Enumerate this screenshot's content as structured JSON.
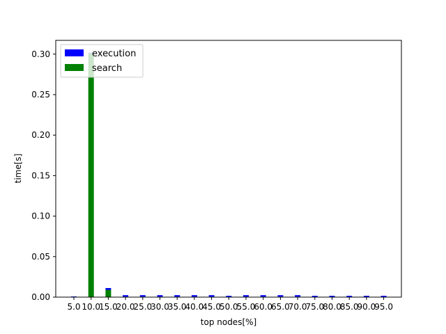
{
  "chart_data": {
    "type": "bar",
    "stacked": true,
    "xlabel": "top nodes[%]",
    "ylabel": "time[s]",
    "categories": [
      "5.0",
      "10.0",
      "15.0",
      "20.0",
      "25.0",
      "30.0",
      "35.0",
      "40.0",
      "45.0",
      "50.0",
      "55.0",
      "60.0",
      "65.0",
      "70.0",
      "75.0",
      "80.0",
      "85.0",
      "90.0",
      "95.0"
    ],
    "ylim": [
      0,
      0.317
    ],
    "yticks": [
      "0.00",
      "0.05",
      "0.10",
      "0.15",
      "0.20",
      "0.25",
      "0.30"
    ],
    "ytick_values": [
      0,
      0.05,
      0.1,
      0.15,
      0.2,
      0.25,
      0.3
    ],
    "series": [
      {
        "name": "search",
        "color": "#008000",
        "values": [
          0.0002,
          0.301,
          0.009,
          0.0006,
          0.0006,
          0.0006,
          0.0006,
          0.0006,
          0.0006,
          0.0004,
          0.0006,
          0.0006,
          0.0006,
          0.0006,
          0.0004,
          0.0004,
          0.0004,
          0.0004,
          0.0004
        ]
      },
      {
        "name": "execution",
        "color": "#0000ff",
        "values": [
          0.0006,
          0.0008,
          0.0022,
          0.0018,
          0.0018,
          0.0018,
          0.0018,
          0.0018,
          0.0018,
          0.0012,
          0.0018,
          0.0018,
          0.0018,
          0.0018,
          0.0012,
          0.0012,
          0.0012,
          0.0012,
          0.0012
        ]
      }
    ],
    "legend": {
      "placement": "top-left",
      "entries": [
        {
          "label": "execution",
          "color": "#0000ff"
        },
        {
          "label": "search",
          "color": "#008000"
        }
      ]
    },
    "grid": false
  }
}
